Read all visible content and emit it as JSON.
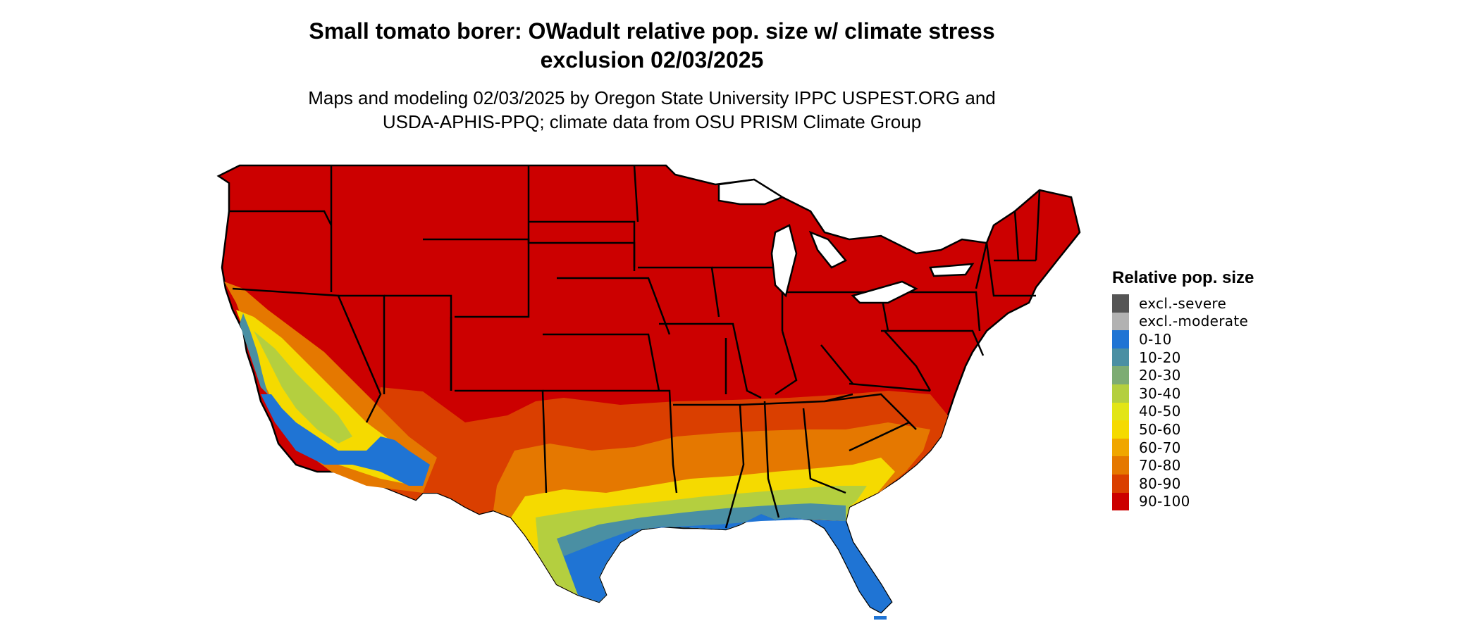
{
  "header": {
    "title_line1": "Small tomato borer: OWadult relative pop. size w/ climate stress",
    "title_line2": "exclusion 02/03/2025",
    "subtitle_line1": "Maps and modeling 02/03/2025 by Oregon State University IPPC USPEST.ORG and",
    "subtitle_line2": "USDA-APHIS-PPQ; climate data from OSU PRISM Climate Group"
  },
  "legend": {
    "title": "Relative pop. size",
    "items": [
      {
        "label": "excl.-severe",
        "color": "#555555"
      },
      {
        "label": "excl.-moderate",
        "color": "#b2b2b2"
      },
      {
        "label": "0-10",
        "color": "#1f74d4"
      },
      {
        "label": "10-20",
        "color": "#4a8fa3"
      },
      {
        "label": "20-30",
        "color": "#7dac73"
      },
      {
        "label": "30-40",
        "color": "#b4cf3f"
      },
      {
        "label": "40-50",
        "color": "#e2e516"
      },
      {
        "label": "50-60",
        "color": "#f5da00"
      },
      {
        "label": "60-70",
        "color": "#f0a600"
      },
      {
        "label": "70-80",
        "color": "#e57800"
      },
      {
        "label": "80-90",
        "color": "#da3f00"
      },
      {
        "label": "90-100",
        "color": "#cc0000"
      }
    ]
  },
  "map": {
    "region": "contiguous United States",
    "dominant_class": "90-100",
    "background_color": "#ffffff",
    "border_color": "#000000"
  }
}
